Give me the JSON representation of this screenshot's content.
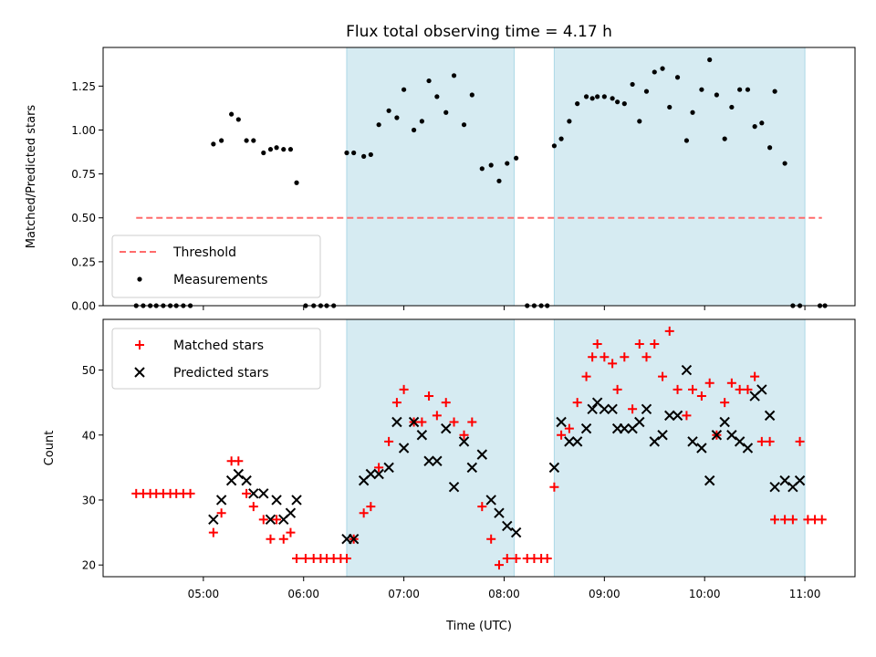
{
  "chart_data": {
    "title": "Flux total observing time = 4.17 h",
    "xlabel": "Time (UTC)",
    "x_ticks": [
      "05:00",
      "06:00",
      "07:00",
      "08:00",
      "09:00",
      "10:00",
      "11:00"
    ],
    "x_tick_hours": [
      5,
      6,
      7,
      8,
      9,
      10,
      11
    ],
    "xlim_hours": [
      4.0,
      11.5
    ],
    "shaded_intervals_hours": [
      [
        6.43,
        8.1
      ],
      [
        8.5,
        11.0
      ]
    ],
    "shade_color": "#add8e6",
    "panels": [
      {
        "type": "scatter",
        "ylabel": "Matched/Predicted stars",
        "ylim": [
          0,
          1.47
        ],
        "y_ticks": [
          0.0,
          0.25,
          0.5,
          0.75,
          1.0,
          1.25
        ],
        "y_tick_labels": [
          "0.00",
          "0.25",
          "0.50",
          "0.75",
          "1.00",
          "1.25"
        ],
        "legend": [
          "Threshold",
          "Measurements"
        ],
        "threshold": {
          "name": "Threshold",
          "value": 0.5,
          "x_range_hours": [
            4.33,
            11.17
          ],
          "color": "#ff6b6b"
        },
        "series": [
          {
            "name": "Measurements",
            "color": "#000000",
            "x_hours": [
              4.33,
              4.4,
              4.47,
              4.53,
              4.6,
              4.67,
              4.73,
              4.8,
              4.87,
              5.1,
              5.18,
              5.28,
              5.35,
              5.43,
              5.5,
              5.6,
              5.67,
              5.73,
              5.8,
              5.87,
              5.93,
              6.02,
              6.1,
              6.17,
              6.23,
              6.3,
              6.43,
              6.5,
              6.6,
              6.67,
              6.75,
              6.85,
              6.93,
              7.0,
              7.1,
              7.18,
              7.25,
              7.33,
              7.42,
              7.5,
              7.6,
              7.68,
              7.78,
              7.87,
              7.95,
              8.03,
              8.12,
              8.23,
              8.3,
              8.37,
              8.43,
              8.5,
              8.57,
              8.65,
              8.73,
              8.82,
              8.88,
              8.93,
              9.0,
              9.08,
              9.13,
              9.2,
              9.28,
              9.35,
              9.42,
              9.5,
              9.58,
              9.65,
              9.73,
              9.82,
              9.88,
              9.97,
              10.05,
              10.12,
              10.2,
              10.27,
              10.35,
              10.43,
              10.5,
              10.57,
              10.65,
              10.7,
              10.8,
              10.88,
              10.95,
              11.15,
              11.2
            ],
            "y": [
              0,
              0,
              0,
              0,
              0,
              0,
              0,
              0,
              0,
              0.92,
              0.94,
              1.09,
              1.06,
              0.94,
              0.94,
              0.87,
              0.89,
              0.9,
              0.89,
              0.89,
              0.7,
              0,
              0,
              0,
              0,
              0,
              0.87,
              0.87,
              0.85,
              0.86,
              1.03,
              1.11,
              1.07,
              1.23,
              1.0,
              1.05,
              1.28,
              1.19,
              1.1,
              1.31,
              1.03,
              1.2,
              0.78,
              0.8,
              0.71,
              0.81,
              0.84,
              0,
              0,
              0,
              0,
              0.91,
              0.95,
              1.05,
              1.15,
              1.19,
              1.18,
              1.19,
              1.19,
              1.18,
              1.16,
              1.15,
              1.26,
              1.05,
              1.22,
              1.33,
              1.35,
              1.13,
              1.3,
              0.94,
              1.1,
              1.23,
              1.4,
              1.2,
              0.95,
              1.13,
              1.23,
              1.23,
              1.02,
              1.04,
              0.9,
              1.22,
              0.81,
              0,
              0,
              0,
              0
            ]
          }
        ]
      },
      {
        "type": "scatter",
        "ylabel": "Count",
        "ylim": [
          18.2,
          57.8
        ],
        "y_ticks": [
          20,
          30,
          40,
          50
        ],
        "y_tick_labels": [
          "20",
          "30",
          "40",
          "50"
        ],
        "legend": [
          "Matched stars",
          "Predicted stars"
        ],
        "series": [
          {
            "name": "Matched stars",
            "marker": "+",
            "color": "#ff0000",
            "x_hours": [
              4.33,
              4.4,
              4.47,
              4.53,
              4.6,
              4.67,
              4.73,
              4.8,
              4.87,
              5.1,
              5.18,
              5.28,
              5.35,
              5.43,
              5.5,
              5.6,
              5.67,
              5.73,
              5.8,
              5.87,
              5.93,
              6.02,
              6.1,
              6.17,
              6.23,
              6.3,
              6.37,
              6.43,
              6.5,
              6.6,
              6.67,
              6.75,
              6.85,
              6.93,
              7.0,
              7.1,
              7.18,
              7.25,
              7.33,
              7.42,
              7.5,
              7.6,
              7.68,
              7.78,
              7.87,
              7.95,
              8.03,
              8.12,
              8.23,
              8.3,
              8.37,
              8.43,
              8.5,
              8.57,
              8.65,
              8.73,
              8.82,
              8.88,
              8.93,
              9.0,
              9.08,
              9.13,
              9.2,
              9.28,
              9.35,
              9.42,
              9.5,
              9.58,
              9.65,
              9.73,
              9.82,
              9.88,
              9.97,
              10.05,
              10.12,
              10.2,
              10.27,
              10.35,
              10.43,
              10.5,
              10.57,
              10.65,
              10.7,
              10.8,
              10.88,
              10.95,
              11.03,
              11.1,
              11.17
            ],
            "y": [
              31,
              31,
              31,
              31,
              31,
              31,
              31,
              31,
              31,
              25,
              28,
              36,
              36,
              31,
              29,
              27,
              24,
              27,
              24,
              25,
              21,
              21,
              21,
              21,
              21,
              21,
              21,
              21,
              24,
              28,
              29,
              35,
              39,
              45,
              47,
              42,
              42,
              46,
              43,
              45,
              42,
              40,
              42,
              29,
              24,
              20,
              21,
              21,
              21,
              21,
              21,
              21,
              32,
              40,
              41,
              45,
              49,
              52,
              54,
              52,
              51,
              47,
              52,
              44,
              54,
              52,
              54,
              49,
              56,
              47,
              43,
              47,
              46,
              48,
              40,
              45,
              48,
              47,
              47,
              49,
              39,
              39,
              27,
              27,
              27,
              39,
              27,
              27,
              27
            ]
          },
          {
            "name": "Predicted stars",
            "marker": "x",
            "color": "#000000",
            "x_hours": [
              5.1,
              5.18,
              5.28,
              5.35,
              5.43,
              5.5,
              5.6,
              5.67,
              5.73,
              5.8,
              5.87,
              5.93,
              6.43,
              6.5,
              6.6,
              6.67,
              6.75,
              6.85,
              6.93,
              7.0,
              7.1,
              7.18,
              7.25,
              7.33,
              7.42,
              7.5,
              7.6,
              7.68,
              7.78,
              7.87,
              7.95,
              8.03,
              8.12,
              8.5,
              8.57,
              8.65,
              8.73,
              8.82,
              8.88,
              8.93,
              9.0,
              9.08,
              9.13,
              9.2,
              9.28,
              9.35,
              9.42,
              9.5,
              9.58,
              9.65,
              9.73,
              9.82,
              9.88,
              9.97,
              10.05,
              10.12,
              10.2,
              10.27,
              10.35,
              10.43,
              10.5,
              10.57,
              10.65,
              10.7,
              10.8,
              10.88,
              10.95
            ],
            "y": [
              27,
              30,
              33,
              34,
              33,
              31,
              31,
              27,
              30,
              27,
              28,
              30,
              24,
              24,
              33,
              34,
              34,
              35,
              42,
              38,
              42,
              40,
              36,
              36,
              41,
              32,
              39,
              35,
              37,
              30,
              28,
              26,
              25,
              35,
              42,
              39,
              39,
              41,
              44,
              45,
              44,
              44,
              41,
              41,
              41,
              42,
              44,
              39,
              40,
              43,
              43,
              50,
              39,
              38,
              33,
              40,
              42,
              40,
              39,
              38,
              46,
              47,
              43,
              32,
              33,
              32,
              33
            ]
          }
        ]
      }
    ]
  }
}
